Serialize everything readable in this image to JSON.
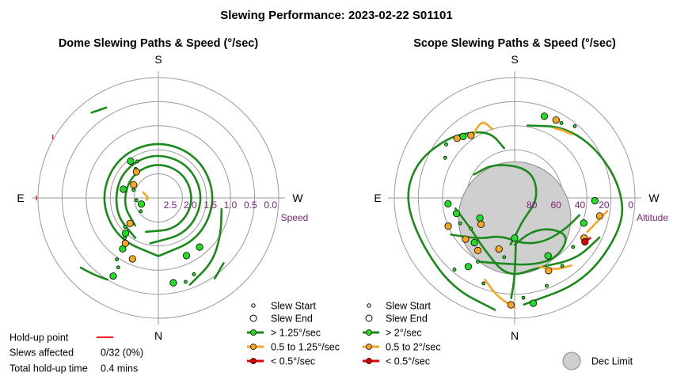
{
  "main_title": "Slewing Performance: 2023-02-22 S01101",
  "colors": {
    "ring": "#9a9a9a",
    "fast": "#1a8a1a",
    "fast_dot": "#22dd22",
    "mid": "#f5a623",
    "slow": "#dd0000",
    "holdup": "#ee2222",
    "dec_limit": "#cfcfcf",
    "tick_text": "#7a1f7a"
  },
  "info": {
    "holdup_label": "Hold-up point",
    "slews_affected_label": "Slews affected",
    "slews_affected_value": "0/32 (0%)",
    "total_holdup_label": "Total hold-up time",
    "total_holdup_value": "0.4 mins"
  },
  "chart_data": [
    {
      "type": "scatter",
      "title": "Dome Slewing Paths & Speed (°/sec)",
      "projection": "polar",
      "radial_axis_label": "Speed",
      "radial_range": [
        0,
        3
      ],
      "radial_ticks": [
        "2.5",
        "2.0",
        "1.5",
        "1.0",
        "0.5",
        "0.0"
      ],
      "radial_reversed": true,
      "compass": {
        "top": "S",
        "bottom": "N",
        "left": "E",
        "right": "W"
      },
      "legend": {
        "start": "Slew Start",
        "end": "Slew End",
        "fast": "> 1.25°/sec",
        "mid": "0.5 to 1.25°/sec",
        "slow": "< 0.5°/sec"
      },
      "fast_paths": [
        {
          "name": "loop-1",
          "points": [
            [
              180,
              1.45
            ],
            [
              225,
              1.45
            ],
            [
              270,
              1.45
            ],
            [
              315,
              1.45
            ],
            [
              360,
              1.45
            ],
            [
              45,
              1.45
            ],
            [
              90,
              1.45
            ],
            [
              135,
              1.45
            ],
            [
              180,
              1.45
            ]
          ]
        },
        {
          "name": "loop-2",
          "points": [
            [
              170,
              1.15
            ],
            [
              220,
              1.15
            ],
            [
              270,
              1.15
            ],
            [
              320,
              1.15
            ],
            [
              10,
              1.15
            ],
            [
              60,
              1.15
            ],
            [
              110,
              1.15
            ],
            [
              150,
              1.15
            ]
          ]
        },
        {
          "name": "loop-3",
          "points": [
            [
              160,
              0.9
            ],
            [
              210,
              0.9
            ],
            [
              260,
              0.9
            ],
            [
              310,
              0.9
            ],
            [
              0,
              0.9
            ],
            [
              50,
              0.9
            ],
            [
              100,
              0.9
            ],
            [
              140,
              0.9
            ]
          ]
        },
        {
          "name": "spiral-1",
          "points": [
            [
              200,
              2.3
            ],
            [
              220,
              2.1
            ],
            [
              240,
              1.8
            ],
            [
              260,
              1.6
            ]
          ]
        },
        {
          "name": "arc-ne",
          "points": [
            [
              148,
              2.4
            ],
            [
              140,
              2.5
            ],
            [
              132,
              2.6
            ]
          ]
        },
        {
          "name": "arc-sw",
          "points": [
            [
              215,
              2.45
            ],
            [
              225,
              2.3
            ]
          ]
        },
        {
          "name": "arc-low",
          "points": [
            [
              30,
              2.6
            ],
            [
              38,
              2.7
            ]
          ]
        }
      ],
      "mid_paths": [
        {
          "name": "arc-east",
          "points": [
            [
              100,
              0.3
            ],
            [
              90,
              0.25
            ],
            [
              80,
              0.3
            ],
            [
              70,
              0.4
            ]
          ]
        }
      ],
      "start_points": [
        [
          140,
          1.3
        ],
        [
          131,
          1.1
        ],
        [
          150,
          2.0
        ],
        [
          146,
          1.85
        ],
        [
          127,
          0.55
        ],
        [
          96,
          0.55
        ],
        [
          72,
          0.65
        ],
        [
          38,
          0.92
        ],
        [
          30,
          1.05
        ],
        [
          198,
          2.2
        ],
        [
          205,
          2.1
        ]
      ],
      "end_points": [
        [
          145,
          1.55
        ],
        [
          137,
          1.2
        ],
        [
          150,
          2.25
        ],
        [
          110,
          0.45
        ],
        [
          76,
          0.9
        ],
        [
          37,
          1.15
        ],
        [
          220,
          1.6
        ],
        [
          206,
          1.6
        ],
        [
          190,
          2.15
        ]
      ],
      "mid_points": [
        [
          157,
          1.65
        ],
        [
          144,
          1.4
        ],
        [
          62,
          0.7
        ],
        [
          40,
          0.85
        ],
        [
          132,
          0.95
        ]
      ],
      "holdup_points": [
        [
          90,
          0.0
        ],
        [
          60,
          0.0
        ]
      ]
    },
    {
      "type": "scatter",
      "title": "Scope Slewing Paths & Speed (°/sec)",
      "projection": "polar",
      "radial_axis_label": "Altitude",
      "radial_range": [
        0,
        90
      ],
      "radial_ticks": [
        "80",
        "60",
        "40",
        "20",
        "0"
      ],
      "compass": {
        "top": "S",
        "bottom": "N",
        "left": "E",
        "right": "W"
      },
      "legend": {
        "start": "Slew Start",
        "end": "Slew End",
        "fast": "> 2°/sec",
        "mid": "0.5 to 2°/sec",
        "slow": "< 0.5°/sec",
        "dec_limit": "Dec Limit"
      },
      "dec_limit_disk": {
        "azimuth": 0,
        "altitude": 75,
        "radius_deg": 12
      },
      "fast_paths": [
        {
          "name": "outer-east",
          "points": [
            [
              170,
              5
            ],
            [
              145,
              8
            ],
            [
              115,
              12
            ],
            [
              90,
              8
            ],
            [
              70,
              12
            ],
            [
              50,
              22
            ],
            [
              35,
              30
            ],
            [
              20,
              38
            ],
            [
              12,
              52
            ]
          ]
        },
        {
          "name": "outer-west",
          "points": [
            [
              185,
              10
            ],
            [
              220,
              8
            ],
            [
              255,
              6
            ],
            [
              275,
              10
            ],
            [
              300,
              18
            ],
            [
              325,
              25
            ],
            [
              350,
              35
            ]
          ]
        },
        {
          "name": "mid-loop-1",
          "points": [
            [
              150,
              35
            ],
            [
              170,
              40
            ],
            [
              195,
              38
            ],
            [
              215,
              35
            ],
            [
              235,
              40
            ],
            [
              230,
              55
            ],
            [
              205,
              62
            ],
            [
              180,
              55
            ]
          ]
        },
        {
          "name": "mid-loop-2",
          "points": [
            [
              120,
              35
            ],
            [
              140,
              50
            ],
            [
              160,
              60
            ],
            [
              190,
              55
            ],
            [
              215,
              50
            ],
            [
              240,
              45
            ],
            [
              255,
              40
            ]
          ]
        },
        {
          "name": "mid-loop-3",
          "points": [
            [
              100,
              45
            ],
            [
              125,
              50
            ],
            [
              150,
              45
            ],
            [
              175,
              30
            ],
            [
              200,
              35
            ],
            [
              225,
              25
            ],
            [
              245,
              20
            ]
          ]
        },
        {
          "name": "inner-1",
          "points": [
            [
              175,
              55
            ],
            [
              185,
              65
            ],
            [
              200,
              72
            ],
            [
              270,
              72
            ],
            [
              330,
              65
            ],
            [
              30,
              60
            ],
            [
              60,
              55
            ]
          ]
        },
        {
          "name": "spike-1",
          "points": [
            [
              178,
              15
            ],
            [
              180,
              30
            ],
            [
              182,
              60
            ]
          ]
        }
      ],
      "mid_paths": [
        {
          "name": "north-east",
          "points": [
            [
              35,
              35
            ],
            [
              28,
              30
            ],
            [
              22,
              28
            ],
            [
              18,
              36
            ]
          ]
        },
        {
          "name": "top-right",
          "points": [
            [
              200,
              35
            ],
            [
              210,
              28
            ],
            [
              220,
              24
            ]
          ]
        },
        {
          "name": "right-1",
          "points": [
            [
              245,
              30
            ],
            [
              255,
              25
            ],
            [
              262,
              20
            ]
          ]
        },
        {
          "name": "bottom-right",
          "points": [
            [
              330,
              30
            ],
            [
              325,
              28
            ],
            [
              318,
              26
            ]
          ]
        },
        {
          "name": "top-mid",
          "points": [
            [
              160,
              25
            ],
            [
              170,
              15
            ],
            [
              180,
              8
            ]
          ]
        }
      ],
      "slow_paths": [
        {
          "name": "right-slow",
          "points": [
            [
              238,
              28
            ],
            [
              242,
              26
            ]
          ]
        }
      ],
      "start_points": [
        [
          140,
          20
        ],
        [
          125,
          50
        ],
        [
          160,
          22
        ],
        [
          150,
          35
        ],
        [
          185,
          15
        ],
        [
          170,
          45
        ],
        [
          200,
          20
        ],
        [
          215,
          28
        ],
        [
          230,
          33
        ],
        [
          115,
          45
        ],
        [
          320,
          20
        ],
        [
          328,
          24
        ],
        [
          60,
          30
        ],
        [
          52,
          25
        ]
      ],
      "end_points": [
        [
          146,
          28
        ],
        [
          105,
          45
        ],
        [
          138,
          45
        ],
        [
          190,
          10
        ],
        [
          210,
          40
        ],
        [
          250,
          35
        ],
        [
          268,
          30
        ],
        [
          340,
          25
        ],
        [
          40,
          30
        ],
        [
          120,
          60
        ],
        [
          180,
          60
        ],
        [
          95,
          40
        ]
      ],
      "mid_points": [
        [
          113,
          36
        ],
        [
          130,
          42
        ],
        [
          163,
          50
        ],
        [
          178,
          10
        ],
        [
          205,
          30
        ],
        [
          240,
          30
        ],
        [
          258,
          25
        ],
        [
          332,
          24
        ],
        [
          44,
          28
        ],
        [
          35,
          33
        ],
        [
          145,
          42
        ],
        [
          128,
          58
        ]
      ],
      "slow_points": [
        [
          238,
          28
        ]
      ]
    }
  ]
}
